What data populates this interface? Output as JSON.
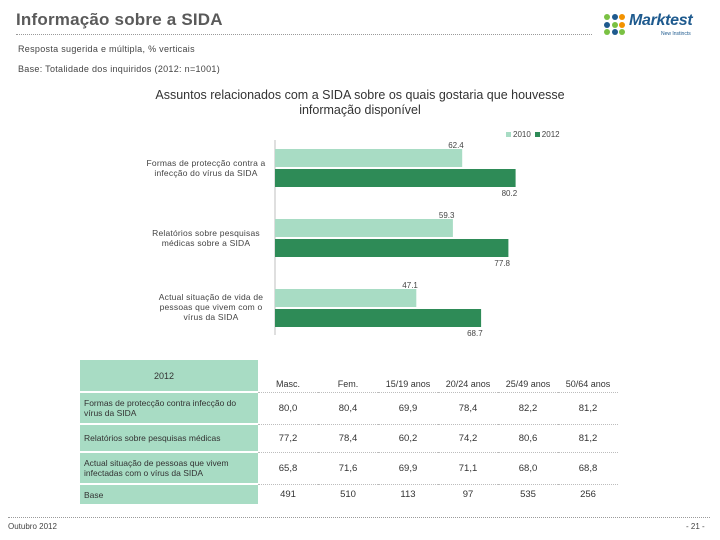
{
  "header": {
    "title": "Informação sobre a SIDA",
    "subtitle_1": "Resposta sugerida e múltipla, % verticais",
    "subtitle_2": "Base: Totalidade dos inquiridos (2012: n=1001)"
  },
  "logo": {
    "name": "Marktest",
    "tagline": "New Instincts",
    "dot_colors": [
      "#7ac143",
      "#1e5a8e",
      "#f39200",
      "#1e5a8e",
      "#7ac143",
      "#f39200",
      "#7ac143",
      "#1e5a8e",
      "#7ac143"
    ]
  },
  "chart_data": {
    "type": "bar",
    "orientation": "horizontal",
    "title": "Assuntos relacionados com a SIDA sobre os quais gostaria que houvesse informação disponível",
    "categories": [
      "Formas de protecção contra a infecção do vírus da SIDA",
      "Relatórios sobre pesquisas médicas sobre a SIDA",
      "Actual situação de vida de pessoas que vivem com o vírus da SIDA"
    ],
    "series": [
      {
        "name": "2010",
        "color": "#a8dcc4",
        "values": [
          62.4,
          59.3,
          47.1
        ],
        "labels": [
          "62.4",
          "59.3",
          "47.1"
        ]
      },
      {
        "name": "2012",
        "color": "#2e8b57",
        "values": [
          80.2,
          77.8,
          68.7
        ],
        "labels": [
          "80.2",
          "77.8",
          "68.7"
        ]
      }
    ],
    "xlim": [
      0,
      100
    ],
    "legend_position": "top-right",
    "grid": false
  },
  "table": {
    "corner_label": "2012",
    "columns": [
      "Masc.",
      "Fem.",
      "15/19 anos",
      "20/24 anos",
      "25/49 anos",
      "50/64 anos"
    ],
    "rows": [
      {
        "label": "Formas de protecção contra infecção do vírus da SIDA",
        "values": [
          "80,0",
          "80,4",
          "69,9",
          "78,4",
          "82,2",
          "81,2"
        ]
      },
      {
        "label": "Relatórios sobre pesquisas médicas",
        "values": [
          "77,2",
          "78,4",
          "60,2",
          "74,2",
          "80,6",
          "81,2"
        ]
      },
      {
        "label": "Actual situação de pessoas que vivem infectadas com o vírus da SIDA",
        "values": [
          "65,8",
          "71,6",
          "69,9",
          "71,1",
          "68,0",
          "68,8"
        ]
      },
      {
        "label": "Base",
        "values": [
          "491",
          "510",
          "113",
          "97",
          "535",
          "256"
        ]
      }
    ]
  },
  "footer": {
    "date": "Outubro 2012",
    "page": "- 21 -"
  }
}
